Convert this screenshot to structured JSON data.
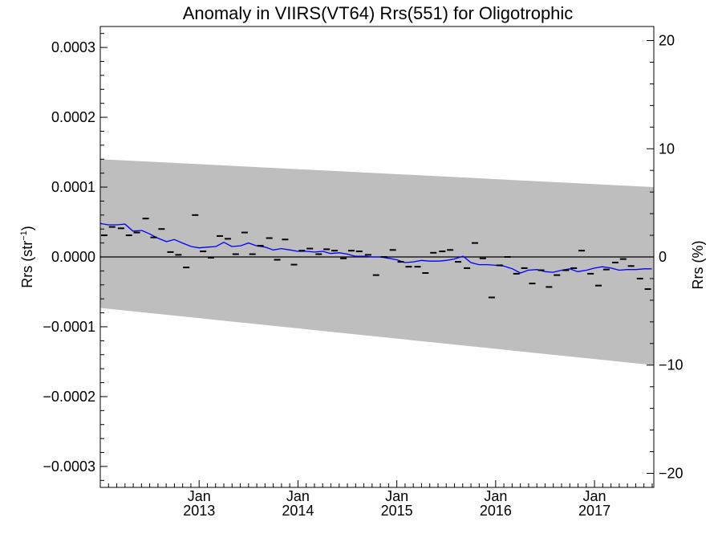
{
  "chart_data": {
    "type": "scatter",
    "title": "Anomaly in VIIRS(VT64) Rrs(551) for Oligotrophic",
    "ylabel": {
      "main": "Rrs (str",
      "sup": "−1",
      "close": ")"
    },
    "y2label": "Rrs (%)",
    "xlim": [
      2012.0,
      2017.6
    ],
    "ylim": [
      -0.00033,
      0.00033
    ],
    "y2lim": [
      -21.3,
      21.3
    ],
    "grid": false,
    "zero_line": true,
    "y_ticks": [
      {
        "value": 0.0003,
        "label": "0.0003"
      },
      {
        "value": 0.0002,
        "label": "0.0002"
      },
      {
        "value": 0.0001,
        "label": "0.0001"
      },
      {
        "value": 0.0,
        "label": "0.0000"
      },
      {
        "value": -0.0001,
        "label": "−0.0001"
      },
      {
        "value": -0.0002,
        "label": "−0.0002"
      },
      {
        "value": -0.0003,
        "label": "−0.0003"
      }
    ],
    "y2_ticks": [
      {
        "value": 20,
        "label": "20"
      },
      {
        "value": 10,
        "label": "10"
      },
      {
        "value": 0,
        "label": "0"
      },
      {
        "value": -10,
        "label": "−10"
      },
      {
        "value": -20,
        "label": "−20"
      }
    ],
    "x_ticks": [
      {
        "value": 2013.0,
        "month": "Jan",
        "year": "2013"
      },
      {
        "value": 2014.0,
        "month": "Jan",
        "year": "2014"
      },
      {
        "value": 2015.0,
        "month": "Jan",
        "year": "2015"
      },
      {
        "value": 2016.0,
        "month": "Jan",
        "year": "2016"
      },
      {
        "value": 2017.0,
        "month": "Jan",
        "year": "2017"
      }
    ],
    "uncertainty_band": {
      "color": "#bebebe",
      "upper": [
        [
          2012.0,
          0.00014
        ],
        [
          2017.6,
          0.0001
        ]
      ],
      "lower": [
        [
          2012.0,
          -7.3e-05
        ],
        [
          2017.6,
          -0.000155
        ]
      ]
    },
    "series": [
      {
        "kind": "markers",
        "marker": "dash",
        "color": "#000000",
        "x": [
          2012.04,
          2012.12,
          2012.21,
          2012.29,
          2012.37,
          2012.46,
          2012.54,
          2012.62,
          2012.71,
          2012.79,
          2012.87,
          2012.96,
          2013.04,
          2013.12,
          2013.21,
          2013.29,
          2013.37,
          2013.46,
          2013.54,
          2013.62,
          2013.71,
          2013.79,
          2013.87,
          2013.96,
          2014.04,
          2014.12,
          2014.21,
          2014.29,
          2014.37,
          2014.46,
          2014.54,
          2014.62,
          2014.71,
          2014.79,
          2014.87,
          2014.96,
          2015.04,
          2015.12,
          2015.21,
          2015.29,
          2015.37,
          2015.46,
          2015.54,
          2015.62,
          2015.71,
          2015.79,
          2015.87,
          2015.96,
          2016.04,
          2016.12,
          2016.21,
          2016.29,
          2016.37,
          2016.46,
          2016.54,
          2016.62,
          2016.71,
          2016.79,
          2016.87,
          2016.96,
          2017.04,
          2017.12,
          2017.21,
          2017.29,
          2017.37,
          2017.46,
          2017.54
        ],
        "y": [
          3.1e-05,
          4.3e-05,
          4.1e-05,
          3.1e-05,
          3.5e-05,
          5.5e-05,
          2.8e-05,
          4e-05,
          7e-06,
          3e-06,
          -1.5e-05,
          6e-05,
          8e-06,
          -1e-06,
          3e-05,
          2.6e-05,
          4e-06,
          3.5e-05,
          4e-06,
          1.6e-05,
          2.7e-05,
          -4e-06,
          2.5e-05,
          -1.1e-05,
          9e-06,
          1.2e-05,
          4e-06,
          1.1e-05,
          9e-06,
          -2e-06,
          9e-06,
          8e-06,
          3e-06,
          -2.6e-05,
          0.0,
          1e-05,
          -7e-06,
          -1.4e-05,
          -1.4e-05,
          -2.3e-05,
          6e-06,
          8e-06,
          1e-05,
          -7e-06,
          -1.6e-05,
          2e-05,
          -2e-06,
          -5.8e-05,
          -1.2e-05,
          0.0,
          -2.4e-05,
          -1.6e-05,
          -3.8e-05,
          -1.9e-05,
          -4.3e-05,
          -2.6e-05,
          -1.9e-05,
          -1.6e-05,
          9e-06,
          -2.4e-05,
          -4.1e-05,
          -1.8e-05,
          -8e-06,
          -3e-06,
          -1.3e-05,
          -3.1e-05,
          -4.6e-05
        ]
      },
      {
        "kind": "line",
        "color": "#0000ff",
        "x": [
          2012.0,
          2012.08,
          2012.17,
          2012.25,
          2012.33,
          2012.42,
          2012.5,
          2012.58,
          2012.67,
          2012.75,
          2012.83,
          2012.92,
          2013.0,
          2013.08,
          2013.17,
          2013.25,
          2013.33,
          2013.42,
          2013.5,
          2013.58,
          2013.67,
          2013.75,
          2013.83,
          2013.92,
          2014.0,
          2014.08,
          2014.17,
          2014.25,
          2014.33,
          2014.42,
          2014.5,
          2014.58,
          2014.67,
          2014.75,
          2014.83,
          2014.92,
          2015.0,
          2015.08,
          2015.17,
          2015.25,
          2015.33,
          2015.42,
          2015.5,
          2015.58,
          2015.67,
          2015.75,
          2015.83,
          2015.92,
          2016.0,
          2016.08,
          2016.17,
          2016.25,
          2016.33,
          2016.42,
          2016.5,
          2016.58,
          2016.67,
          2016.75,
          2016.83,
          2016.92,
          2017.0,
          2017.08,
          2017.17,
          2017.25,
          2017.33,
          2017.42,
          2017.5,
          2017.58
        ],
        "y": [
          4.8e-05,
          4.6e-05,
          4.6e-05,
          4.7e-05,
          3.7e-05,
          3.8e-05,
          3.3e-05,
          2.7e-05,
          2.2e-05,
          2.5e-05,
          2e-05,
          1.5e-05,
          1.3e-05,
          1.4e-05,
          1.5e-05,
          2.1e-05,
          1.5e-05,
          1.6e-05,
          2e-05,
          1.6e-05,
          1.4e-05,
          1e-05,
          1.2e-05,
          1e-05,
          8e-06,
          8e-06,
          7e-06,
          8e-06,
          5e-06,
          6e-06,
          4e-06,
          1e-06,
          1e-06,
          0.0,
          0.0,
          -2e-06,
          -4e-06,
          -8e-06,
          -7e-06,
          -5e-06,
          -6e-06,
          -6e-06,
          -5e-06,
          -3e-06,
          1e-06,
          -8e-06,
          -1.1e-05,
          -1.1e-05,
          -1.2e-05,
          -1.3e-05,
          -1.7e-05,
          -2.3e-05,
          -1.9e-05,
          -1.8e-05,
          -2.1e-05,
          -2.2e-05,
          -1.9e-05,
          -1.7e-05,
          -2.1e-05,
          -1.9e-05,
          -1.6e-05,
          -1.4e-05,
          -1.6e-05,
          -1.9e-05,
          -1.8e-05,
          -1.8e-05,
          -1.7e-05,
          -1.7e-05
        ]
      }
    ]
  }
}
